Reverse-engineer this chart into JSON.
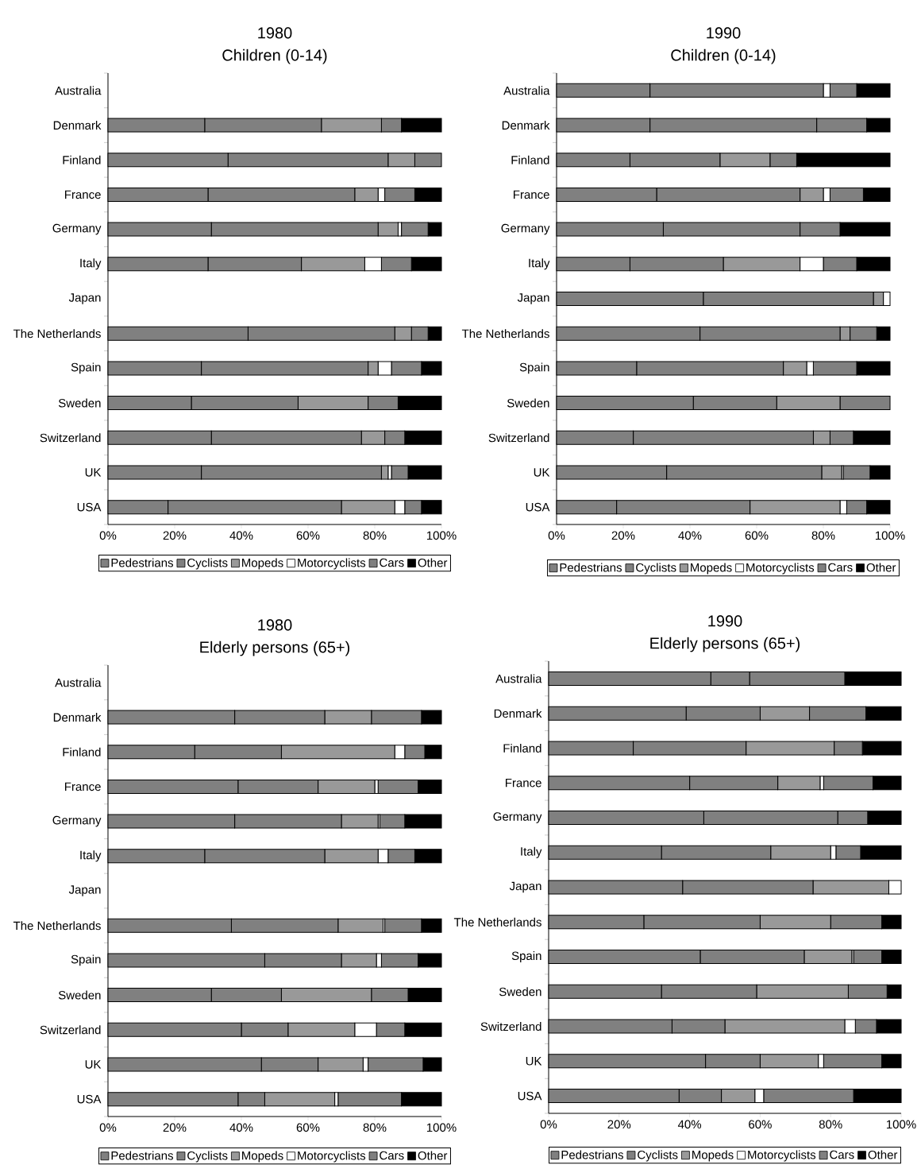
{
  "chart_data": [
    {
      "type": "bar",
      "orientation": "horizontal",
      "stacked": true,
      "title": "1980",
      "subtitle": "Children (0-14)",
      "legend": "bottom",
      "categories": [
        "Australia",
        "Denmark",
        "Finland",
        "France",
        "Germany",
        "Italy",
        "Japan",
        "The Netherlands",
        "Spain",
        "Sweden",
        "Switzerland",
        "UK",
        "USA"
      ],
      "xlim": [
        0,
        100
      ],
      "xticks": [
        {
          "value": 0,
          "label": "0%"
        },
        {
          "value": 20,
          "label": "20%"
        },
        {
          "value": 40,
          "label": "40%"
        },
        {
          "value": 60,
          "label": "60%"
        },
        {
          "value": 80,
          "label": "80%"
        },
        {
          "value": 100,
          "label": "100%"
        }
      ],
      "series": [
        {
          "name": "Pedestrians",
          "color": "#808080",
          "values": [
            null,
            29,
            36,
            30,
            31,
            30,
            null,
            42,
            28,
            25,
            31,
            28,
            18
          ]
        },
        {
          "name": "Cyclists",
          "color": "#808080",
          "values": [
            null,
            35,
            48,
            44,
            50,
            28,
            null,
            44,
            50,
            32,
            45,
            54,
            52
          ]
        },
        {
          "name": "Mopeds",
          "color": "#999999",
          "values": [
            null,
            18,
            8,
            7,
            6,
            19,
            null,
            5,
            3,
            21,
            7,
            2,
            16
          ]
        },
        {
          "name": "Motorcyclists",
          "color": "#ffffff",
          "values": [
            null,
            0,
            0,
            2,
            1,
            5,
            null,
            0,
            4,
            0,
            0,
            1,
            3
          ]
        },
        {
          "name": "Cars",
          "color": "#808080",
          "values": [
            null,
            6,
            8,
            9,
            8,
            9,
            null,
            5,
            9,
            9,
            6,
            5,
            5
          ]
        },
        {
          "name": "Other",
          "color": "#000000",
          "values": [
            null,
            12,
            0,
            8,
            4,
            9,
            null,
            4,
            6,
            13,
            11,
            10,
            6
          ]
        }
      ]
    },
    {
      "type": "bar",
      "orientation": "horizontal",
      "stacked": true,
      "title": "1990",
      "subtitle": "Children (0-14)",
      "legend": "bottom",
      "categories": [
        "Australia",
        "Denmark",
        "Finland",
        "France",
        "Germany",
        "Italy",
        "Japan",
        "The Netherlands",
        "Spain",
        "Sweden",
        "Switzerland",
        "UK",
        "USA"
      ],
      "xlim": [
        0,
        100
      ],
      "xticks": [
        {
          "value": 0,
          "label": "0%"
        },
        {
          "value": 20,
          "label": "20%"
        },
        {
          "value": 40,
          "label": "40%"
        },
        {
          "value": 60,
          "label": "60%"
        },
        {
          "value": 80,
          "label": "80%"
        },
        {
          "value": 100,
          "label": "100%"
        }
      ],
      "series": [
        {
          "name": "Pedestrians",
          "color": "#808080",
          "values": [
            28,
            28,
            22,
            30,
            32,
            22,
            44,
            43,
            24,
            41,
            23,
            33,
            18
          ]
        },
        {
          "name": "Cyclists",
          "color": "#808080",
          "values": [
            52,
            50,
            27,
            43,
            41,
            28,
            51,
            42,
            44,
            25,
            54,
            46.5,
            40
          ]
        },
        {
          "name": "Mopeds",
          "color": "#999999",
          "values": [
            0,
            0,
            15,
            7,
            0,
            23,
            3,
            3,
            7,
            19,
            5,
            6,
            27
          ]
        },
        {
          "name": "Motorcyclists",
          "color": "#ffffff",
          "values": [
            2,
            0,
            0,
            2,
            0,
            7,
            2,
            0,
            2,
            0,
            0,
            0.5,
            2
          ]
        },
        {
          "name": "Cars",
          "color": "#808080",
          "values": [
            8,
            15,
            8,
            10,
            12,
            10,
            0,
            8,
            13,
            15,
            7,
            8,
            6
          ]
        },
        {
          "name": "Other",
          "color": "#000000",
          "values": [
            10,
            7,
            28,
            8,
            15,
            10,
            0,
            4,
            10,
            0,
            11,
            6,
            7
          ]
        }
      ]
    },
    {
      "type": "bar",
      "orientation": "horizontal",
      "stacked": true,
      "title": "1980",
      "subtitle": "Elderly persons (65+)",
      "legend": "bottom",
      "categories": [
        "Australia",
        "Denmark",
        "Finland",
        "France",
        "Germany",
        "Italy",
        "Japan",
        "The Netherlands",
        "Spain",
        "Sweden",
        "Switzerland",
        "UK",
        "USA"
      ],
      "xlim": [
        0,
        100
      ],
      "xticks": [
        {
          "value": 0,
          "label": "0%"
        },
        {
          "value": 20,
          "label": "20%"
        },
        {
          "value": 40,
          "label": "40%"
        },
        {
          "value": 60,
          "label": "60%"
        },
        {
          "value": 80,
          "label": "80%"
        },
        {
          "value": 100,
          "label": "100%"
        }
      ],
      "series": [
        {
          "name": "Pedestrians",
          "color": "#808080",
          "values": [
            null,
            38,
            26,
            39,
            38,
            29,
            null,
            37,
            47,
            31,
            40,
            46,
            39
          ]
        },
        {
          "name": "Cyclists",
          "color": "#808080",
          "values": [
            null,
            27,
            26,
            24,
            32,
            36,
            null,
            32,
            23,
            21,
            14,
            17,
            8
          ]
        },
        {
          "name": "Mopeds",
          "color": "#999999",
          "values": [
            null,
            14,
            34,
            17,
            11,
            16,
            null,
            13.5,
            10.5,
            27,
            20,
            13.5,
            21
          ]
        },
        {
          "name": "Motorcyclists",
          "color": "#ffffff",
          "values": [
            null,
            0,
            3,
            1,
            0.5,
            3,
            null,
            0.5,
            1.5,
            0,
            6.5,
            1.5,
            1
          ]
        },
        {
          "name": "Cars",
          "color": "#808080",
          "values": [
            null,
            15,
            6,
            12,
            7.5,
            8,
            null,
            11,
            11,
            11,
            8.5,
            16.5,
            19
          ]
        },
        {
          "name": "Other",
          "color": "#000000",
          "values": [
            null,
            6,
            5,
            7,
            11,
            8,
            null,
            6,
            7,
            10,
            11,
            5.5,
            12
          ]
        }
      ]
    },
    {
      "type": "bar",
      "orientation": "horizontal",
      "stacked": true,
      "title": "1990",
      "subtitle": "Elderly persons (65+)",
      "legend": "bottom",
      "categories": [
        "Australia",
        "Denmark",
        "Finland",
        "France",
        "Germany",
        "Italy",
        "Japan",
        "The Netherlands",
        "Spain",
        "Sweden",
        "Switzerland",
        "UK",
        "USA"
      ],
      "xlim": [
        0,
        100
      ],
      "xticks": [
        {
          "value": 0,
          "label": "0%"
        },
        {
          "value": 20,
          "label": "20%"
        },
        {
          "value": 40,
          "label": "40%"
        },
        {
          "value": 60,
          "label": "60%"
        },
        {
          "value": 80,
          "label": "80%"
        },
        {
          "value": 100,
          "label": "100%"
        }
      ],
      "series": [
        {
          "name": "Pedestrians",
          "color": "#808080",
          "values": [
            46,
            39,
            24,
            40,
            44,
            32,
            38,
            27,
            43,
            32,
            35,
            44.5,
            37
          ]
        },
        {
          "name": "Cyclists",
          "color": "#808080",
          "values": [
            11,
            21,
            32,
            25,
            38,
            31,
            37,
            33,
            29.5,
            27,
            15,
            15.5,
            12
          ]
        },
        {
          "name": "Mopeds",
          "color": "#999999",
          "values": [
            0,
            14,
            25,
            12,
            0,
            17,
            21.5,
            20,
            13.5,
            26,
            34,
            16.5,
            9.5
          ]
        },
        {
          "name": "Motorcyclists",
          "color": "#ffffff",
          "values": [
            0,
            0,
            0,
            1,
            0,
            1.5,
            3.5,
            0,
            0.5,
            0,
            3,
            1.5,
            2.5
          ]
        },
        {
          "name": "Cars",
          "color": "#808080",
          "values": [
            27,
            16,
            8,
            14,
            8.5,
            7,
            0,
            14.5,
            8,
            11,
            6,
            16.5,
            25.5
          ]
        },
        {
          "name": "Other",
          "color": "#000000",
          "values": [
            16,
            10,
            11,
            8,
            9.5,
            11.5,
            0,
            5.5,
            5.5,
            4,
            7,
            5.5,
            13.5
          ]
        }
      ]
    }
  ]
}
